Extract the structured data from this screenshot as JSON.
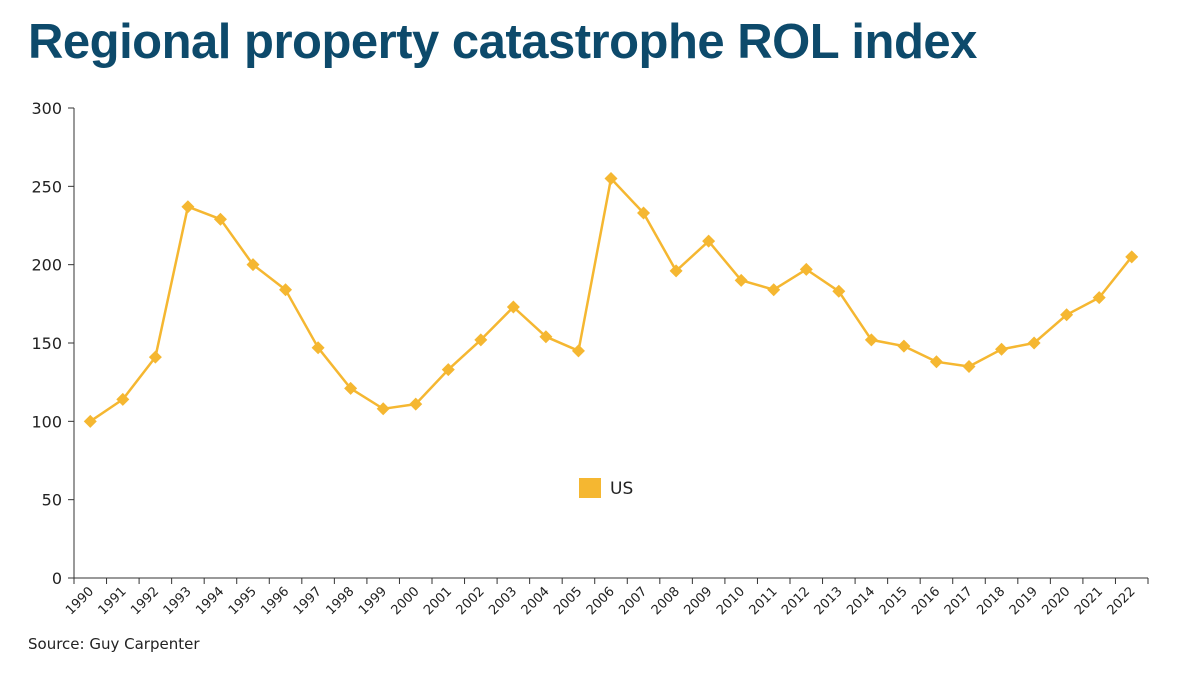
{
  "title": "Regional property catastrophe ROL index",
  "source": "Source: Guy Carpenter",
  "chart_data": {
    "type": "line",
    "title": "Regional property catastrophe ROL index",
    "xlabel": "",
    "ylabel": "",
    "ylim": [
      0,
      300
    ],
    "yticks": [
      0,
      50,
      100,
      150,
      200,
      250,
      300
    ],
    "grid": false,
    "legend_position": "center",
    "categories": [
      "1990",
      "1991",
      "1992",
      "1993",
      "1994",
      "1995",
      "1996",
      "1997",
      "1998",
      "1999",
      "2000",
      "2001",
      "2002",
      "2003",
      "2004",
      "2005",
      "2006",
      "2007",
      "2008",
      "2009",
      "2010",
      "2011",
      "2012",
      "2013",
      "2014",
      "2015",
      "2016",
      "2017",
      "2018",
      "2019",
      "2020",
      "2021",
      "2022"
    ],
    "series": [
      {
        "name": "US",
        "color": "#f5b731",
        "marker": "diamond",
        "values": [
          100,
          114,
          141,
          237,
          229,
          200,
          184,
          147,
          121,
          108,
          111,
          133,
          152,
          173,
          154,
          145,
          255,
          233,
          196,
          215,
          190,
          184,
          197,
          183,
          152,
          148,
          138,
          135,
          146,
          150,
          168,
          179,
          205
        ]
      }
    ]
  }
}
